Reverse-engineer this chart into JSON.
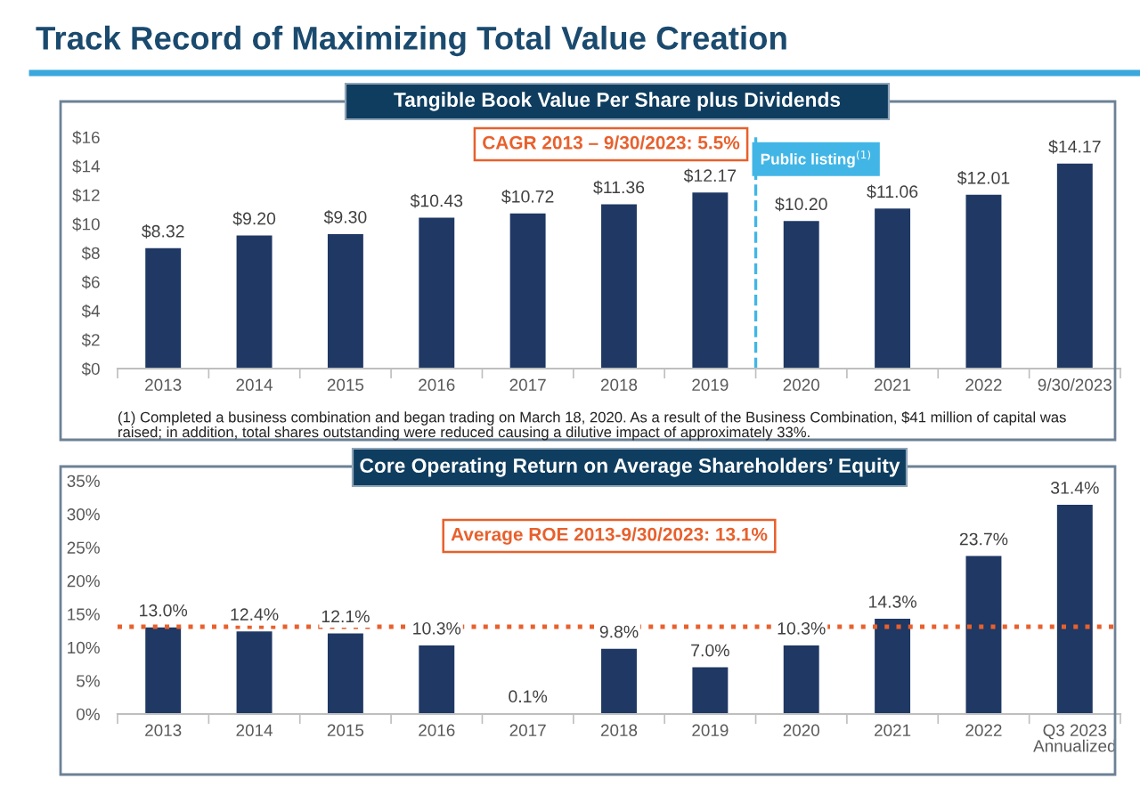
{
  "chart_data": [
    {
      "type": "bar",
      "title": "Track Record of Maximizing Total Value Creation",
      "subtitle": "Tangible Book Value Per Share plus Dividends",
      "categories": [
        "2013",
        "2014",
        "2015",
        "2016",
        "2017",
        "2018",
        "2019",
        "2020",
        "2021",
        "2022",
        "9/30/2023"
      ],
      "values": [
        8.32,
        9.2,
        9.3,
        10.43,
        10.72,
        11.36,
        12.17,
        10.2,
        11.06,
        12.01,
        14.17
      ],
      "color": "#1f3864",
      "value_labels": [
        "$8.32",
        "$9.20",
        "$9.30",
        "$10.43",
        "$10.72",
        "$11.36",
        "$12.17",
        "$10.20",
        "$11.06",
        "$12.01",
        "$14.17"
      ],
      "ylim": [
        0,
        16
      ],
      "yticks": [
        {
          "value": 0,
          "label": "$0"
        },
        {
          "value": 2,
          "label": "$2"
        },
        {
          "value": 4,
          "label": "$4"
        },
        {
          "value": 6,
          "label": "$6"
        },
        {
          "value": 8,
          "label": "$8"
        },
        {
          "value": 10,
          "label": "$10"
        },
        {
          "value": 12,
          "label": "$12"
        },
        {
          "value": 14,
          "label": "$14"
        },
        {
          "value": 16,
          "label": "$16"
        }
      ],
      "ref_lines": [
        {
          "axis": "x",
          "value": "2020",
          "label": "Public listing$^{(1)}$",
          "color": "#41b6e6",
          "line_style": "dashed"
        }
      ],
      "annotations": [
        "CAGR 2013 – 9/30/2023: 5.5%",
        "(1) Completed a business combination and began trading on March 18, 2020. As a result of the Business Combination, $41 million of capital was\nraised; in addition, total shares outstanding were reduced causing a dilutive impact of approximately 33%."
      ]
    },
    {
      "type": "bar",
      "title": "Core Operating Return on Average Shareholders’ Equity",
      "categories": [
        "2013",
        "2014",
        "2015",
        "2016",
        "2017",
        "2018",
        "2019",
        "2020",
        "2021",
        "2022",
        "Q3 2023\nAnnualized"
      ],
      "values": [
        13.0,
        12.4,
        12.1,
        10.3,
        0.1,
        9.8,
        7.0,
        10.3,
        14.3,
        23.7,
        31.4
      ],
      "color": "#1f3864",
      "value_labels": [
        "13.0%",
        "12.4%",
        "12.1%",
        "10.3%",
        "0.1%",
        "9.8%",
        "7.0%",
        "10.3%",
        "14.3%",
        "23.7%",
        "31.4%"
      ],
      "ylim": [
        0,
        35
      ],
      "yticks": [
        {
          "value": 0,
          "label": "0%"
        },
        {
          "value": 5,
          "label": "5%"
        },
        {
          "value": 10,
          "label": "10%"
        },
        {
          "value": 15,
          "label": "15%"
        },
        {
          "value": 20,
          "label": "20%"
        },
        {
          "value": 25,
          "label": "25%"
        },
        {
          "value": 30,
          "label": "30%"
        },
        {
          "value": 35,
          "label": "35%"
        }
      ],
      "ref_lines": [
        {
          "axis": "y",
          "value": 13.1,
          "label": "Average ROE 2013-9/30/2023: 13.1%",
          "color": "#e8602c",
          "line_style": "dotted"
        }
      ]
    }
  ]
}
